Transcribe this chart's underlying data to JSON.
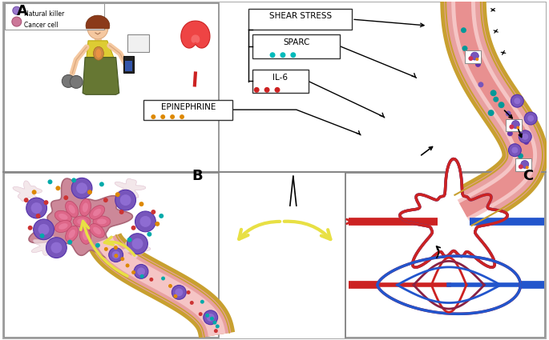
{
  "bg_color": "#ffffff",
  "panel_A_label": "A",
  "panel_B_label": "B",
  "panel_C_label": "C",
  "box_labels": [
    "SHEAR STRESS",
    "SPARC",
    "IL-6"
  ],
  "epinephrine_label": "EPINEPHRINE",
  "cancer_cell_label": "Cancer cell",
  "nk_cell_label": "Natural killer",
  "vessel_tan": "#c8a444",
  "vessel_pink_outer": "#e8a8a8",
  "vessel_pink_inner": "#f5c8c8",
  "vessel_dark_line": "#c07070",
  "sparc_dots_color": "#00bbbb",
  "il6_dots_color": "#cc2222",
  "epinephrine_dots_color": "#cc8800",
  "purple_cell_color": "#6644bb",
  "cancer_mass_color": "#cc7799",
  "arrow_yellow": "#e8e044",
  "arrow_black": "#111111",
  "red_vessel": "#cc2222",
  "blue_vessel": "#2255cc"
}
